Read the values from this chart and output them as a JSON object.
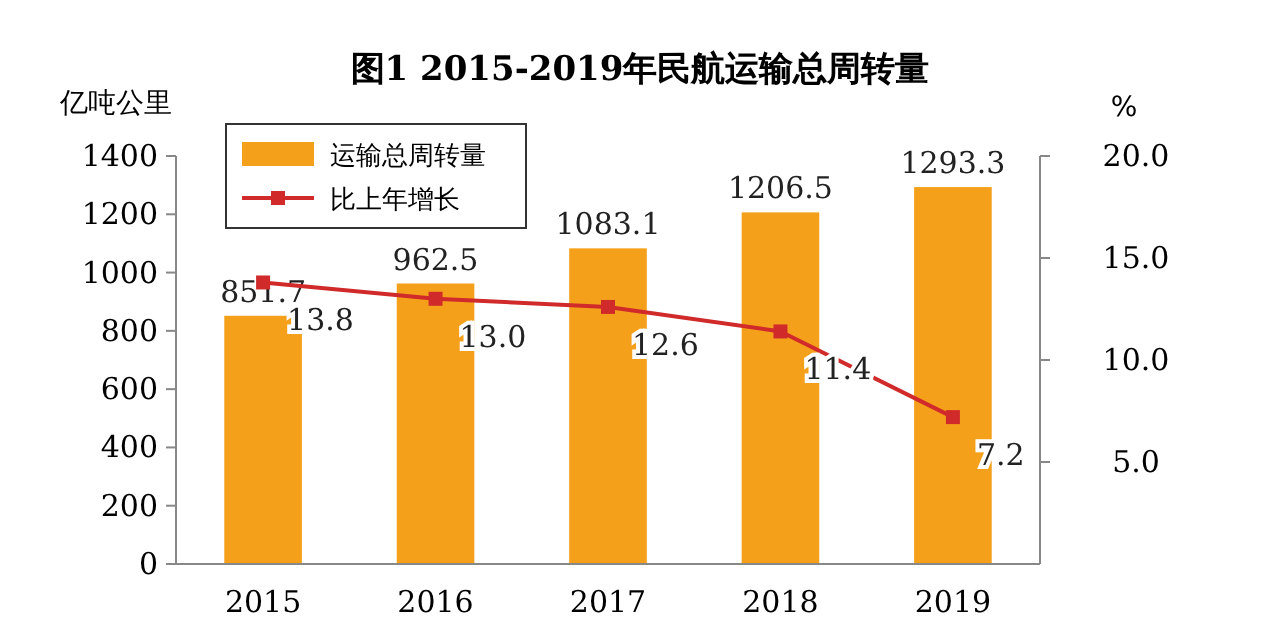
{
  "chart_data": {
    "type": "bar",
    "title": "图1 2015-2019年民航运输总周转量",
    "ylabel": "亿吨公里",
    "y2label": "%",
    "categories": [
      "2015",
      "2016",
      "2017",
      "2018",
      "2019"
    ],
    "series": [
      {
        "name": "运输总周转量",
        "color": "#f5a01a",
        "values": [
          851.7,
          962.5,
          1083.1,
          1206.5,
          1293.3
        ],
        "value_labels": [
          "851.7",
          "962.5",
          "1083.1",
          "1206.5",
          "1293.3"
        ]
      },
      {
        "name": "比上年增长",
        "type": "line",
        "axis": "y2",
        "color": "#d02a2a",
        "marker": "square",
        "values": [
          13.8,
          13.0,
          12.6,
          11.4,
          7.2
        ],
        "value_labels": [
          "13.8",
          "13.0",
          "12.6",
          "11.4",
          "7.2"
        ]
      }
    ],
    "ylim": [
      0,
      1400
    ],
    "yticks": [
      0,
      200,
      400,
      600,
      800,
      1000,
      1200,
      1400
    ],
    "y2lim": [
      0,
      20
    ],
    "y2ticks": [
      {
        "value": 5,
        "label": "5.0"
      },
      {
        "value": 10,
        "label": "10.0"
      },
      {
        "value": 15,
        "label": "15.0"
      },
      {
        "value": 20,
        "label": "20.0"
      }
    ],
    "legend": "top left",
    "grid": false
  }
}
